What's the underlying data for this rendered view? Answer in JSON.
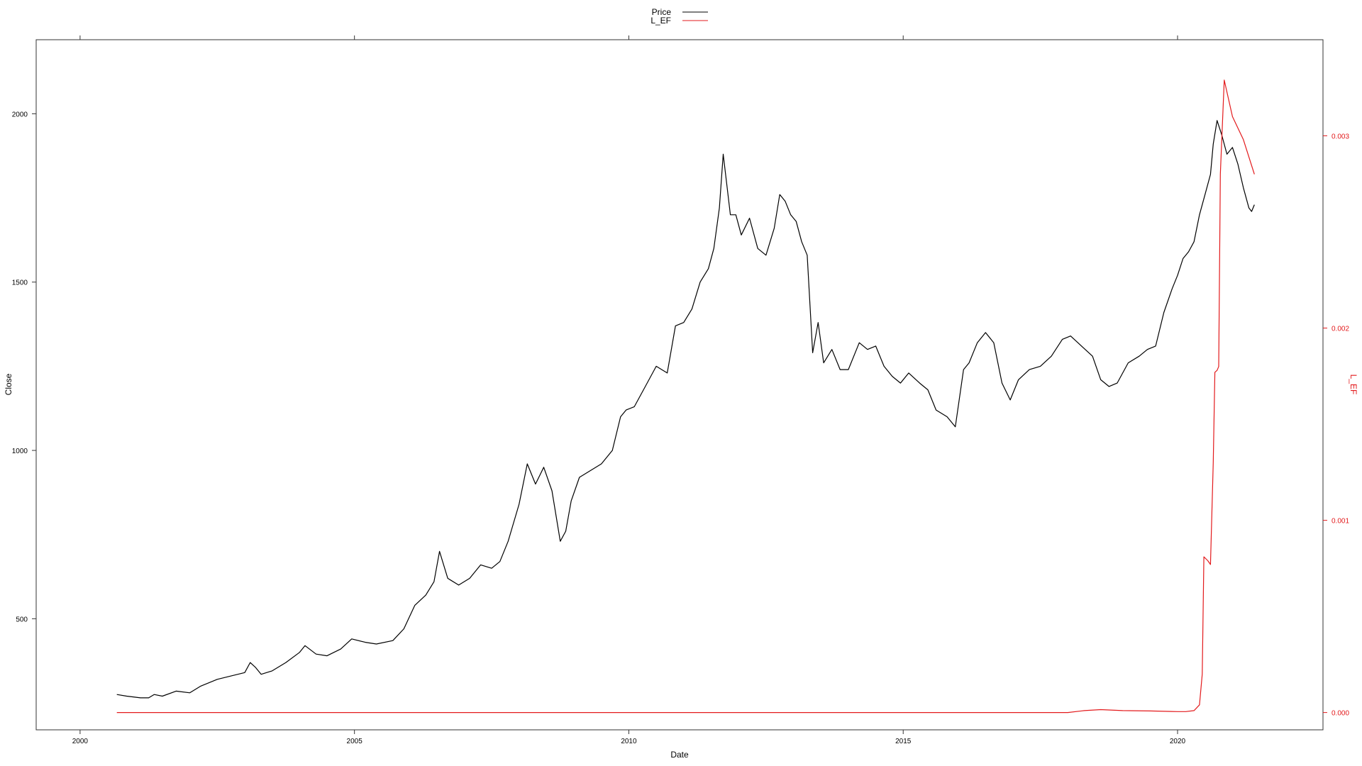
{
  "chart_data": {
    "type": "line",
    "title": "",
    "xlabel": "Date",
    "ylabel": "Close",
    "ylabel_right": "L_EF",
    "xlim": [
      1999.2,
      2022.65
    ],
    "ylim": [
      170,
      2220
    ],
    "ylim_right": [
      -9e-05,
      0.0035
    ],
    "x_ticks": [
      2000,
      2005,
      2010,
      2015,
      2020
    ],
    "x_tick_labels": [
      "2000",
      "2005",
      "2010",
      "2015",
      "2020"
    ],
    "y_ticks": [
      500,
      1000,
      1500,
      2000
    ],
    "y_tick_labels": [
      "500",
      "1000",
      "1500",
      "2000"
    ],
    "y_right_ticks": [
      0.0,
      0.001,
      0.002,
      0.003
    ],
    "y_right_tick_labels": [
      "0.000",
      "0.001",
      "0.002",
      "0.003"
    ],
    "grid": false,
    "legend_position": "top-center",
    "legend": [
      {
        "label": "Price",
        "color": "#000000"
      },
      {
        "label": "L_EF",
        "color": "#e31a1c"
      }
    ],
    "series": [
      {
        "name": "Price",
        "axis": "left",
        "color": "#000000",
        "x": [
          2000.67,
          2000.85,
          2001.1,
          2001.25,
          2001.35,
          2001.5,
          2001.75,
          2002.0,
          2002.2,
          2002.5,
          2002.75,
          2003.0,
          2003.1,
          2003.2,
          2003.3,
          2003.5,
          2003.75,
          2004.0,
          2004.1,
          2004.3,
          2004.5,
          2004.75,
          2004.95,
          2005.2,
          2005.4,
          2005.7,
          2005.9,
          2006.1,
          2006.3,
          2006.45,
          2006.55,
          2006.7,
          2006.9,
          2007.1,
          2007.3,
          2007.5,
          2007.65,
          2007.8,
          2008.0,
          2008.15,
          2008.3,
          2008.45,
          2008.6,
          2008.75,
          2008.85,
          2008.95,
          2009.1,
          2009.3,
          2009.5,
          2009.7,
          2009.85,
          2009.95,
          2010.1,
          2010.3,
          2010.5,
          2010.7,
          2010.85,
          2011.0,
          2011.15,
          2011.3,
          2011.45,
          2011.55,
          2011.65,
          2011.72,
          2011.85,
          2011.95,
          2012.05,
          2012.2,
          2012.35,
          2012.5,
          2012.65,
          2012.75,
          2012.85,
          2012.95,
          2013.05,
          2013.15,
          2013.25,
          2013.35,
          2013.45,
          2013.55,
          2013.7,
          2013.85,
          2014.0,
          2014.2,
          2014.35,
          2014.5,
          2014.65,
          2014.8,
          2014.95,
          2015.1,
          2015.3,
          2015.45,
          2015.6,
          2015.8,
          2015.95,
          2016.1,
          2016.2,
          2016.35,
          2016.5,
          2016.65,
          2016.8,
          2016.95,
          2017.1,
          2017.3,
          2017.5,
          2017.7,
          2017.9,
          2018.05,
          2018.25,
          2018.45,
          2018.6,
          2018.75,
          2018.9,
          2019.1,
          2019.3,
          2019.45,
          2019.6,
          2019.75,
          2019.9,
          2020.0,
          2020.1,
          2020.2,
          2020.3,
          2020.4,
          2020.5,
          2020.6,
          2020.65,
          2020.72,
          2020.8,
          2020.9,
          2021.0,
          2021.1,
          2021.2,
          2021.3,
          2021.35,
          2021.4
        ],
        "y": [
          275,
          270,
          265,
          265,
          275,
          270,
          285,
          280,
          300,
          320,
          330,
          340,
          370,
          355,
          335,
          345,
          370,
          400,
          420,
          395,
          390,
          410,
          440,
          430,
          425,
          435,
          470,
          540,
          570,
          610,
          700,
          620,
          600,
          620,
          660,
          650,
          670,
          730,
          840,
          960,
          900,
          950,
          880,
          730,
          760,
          850,
          920,
          940,
          960,
          1000,
          1100,
          1120,
          1130,
          1190,
          1250,
          1230,
          1370,
          1380,
          1420,
          1500,
          1540,
          1600,
          1720,
          1880,
          1700,
          1700,
          1640,
          1690,
          1600,
          1580,
          1660,
          1760,
          1740,
          1700,
          1680,
          1620,
          1580,
          1290,
          1380,
          1260,
          1300,
          1240,
          1240,
          1320,
          1300,
          1310,
          1250,
          1220,
          1200,
          1230,
          1200,
          1180,
          1120,
          1100,
          1070,
          1240,
          1260,
          1320,
          1350,
          1320,
          1200,
          1150,
          1210,
          1240,
          1250,
          1280,
          1330,
          1340,
          1310,
          1280,
          1210,
          1190,
          1200,
          1260,
          1280,
          1300,
          1310,
          1410,
          1480,
          1520,
          1570,
          1590,
          1620,
          1700,
          1760,
          1820,
          1910,
          1980,
          1940,
          1880,
          1900,
          1850,
          1780,
          1720,
          1710,
          1730
        ]
      },
      {
        "name": "L_EF",
        "axis": "right",
        "color": "#e31a1c",
        "x": [
          2000.67,
          2018.0,
          2018.3,
          2018.6,
          2019.0,
          2019.5,
          2020.0,
          2020.15,
          2020.3,
          2020.4,
          2020.45,
          2020.48,
          2020.55,
          2020.6,
          2020.65,
          2020.68,
          2020.72,
          2020.75,
          2020.78,
          2020.85,
          2021.0,
          2021.2,
          2021.4
        ],
        "y": [
          0.0,
          0.0,
          1e-05,
          1.5e-05,
          1e-05,
          8e-06,
          5e-06,
          5e-06,
          1e-05,
          4e-05,
          0.0002,
          0.00081,
          0.00079,
          0.00077,
          0.0013,
          0.00177,
          0.00178,
          0.0018,
          0.0028,
          0.00329,
          0.0031,
          0.00298,
          0.0028
        ]
      }
    ]
  }
}
